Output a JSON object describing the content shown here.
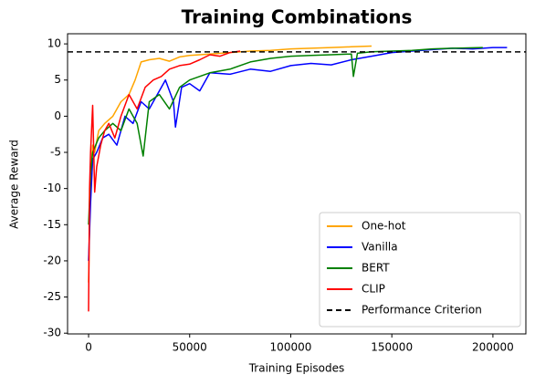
{
  "chart_data": {
    "type": "line",
    "title": "Training Combinations",
    "x_label": "Training Episodes",
    "y_label": "Average Reward",
    "xlim": [
      -10400,
      216300
    ],
    "ylim": [
      -30.1,
      11.4
    ],
    "xticks": [
      0,
      50000,
      100000,
      150000,
      200000
    ],
    "yticks": [
      -30,
      -25,
      -20,
      -15,
      -10,
      -5,
      0,
      5,
      10
    ],
    "legend": "lower right",
    "series": [
      {
        "name": "One-hot",
        "color": "#ffa500",
        "x": [
          0,
          1000,
          2000,
          3000,
          5000,
          8000,
          12000,
          16000,
          20000,
          23000,
          26000,
          30000,
          35000,
          40000,
          45000,
          50000,
          60000,
          70000,
          80000,
          90000,
          100000,
          110000,
          120000,
          130000,
          140000
        ],
        "values": [
          -23,
          -8,
          -4,
          -5,
          -2,
          -1,
          0,
          2,
          3,
          5,
          7.5,
          7.8,
          8,
          7.6,
          8.2,
          8.4,
          8.6,
          8.8,
          9,
          9.1,
          9.3,
          9.4,
          9.5,
          9.6,
          9.7
        ]
      },
      {
        "name": "Vanilla",
        "color": "#0000ff",
        "x": [
          0,
          1000,
          2000,
          4000,
          7000,
          10000,
          14000,
          18000,
          22000,
          26000,
          30000,
          34000,
          38000,
          42000,
          43000,
          46000,
          50000,
          55000,
          60000,
          70000,
          80000,
          90000,
          100000,
          110000,
          120000,
          130000,
          140000,
          150000,
          160000,
          170000,
          180000,
          190000,
          200000,
          207000
        ],
        "values": [
          -20,
          -12,
          -6,
          -5,
          -3,
          -2.5,
          -4,
          0,
          -1,
          2,
          1,
          3,
          5,
          2,
          -1.5,
          4,
          4.5,
          3.5,
          6,
          5.8,
          6.5,
          6.2,
          7,
          7.3,
          7.1,
          7.8,
          8.3,
          8.8,
          9,
          9.2,
          9.4,
          9.3,
          9.5,
          9.5
        ]
      },
      {
        "name": "BERT",
        "color": "#008000",
        "x": [
          0,
          1000,
          2000,
          5000,
          8000,
          12000,
          16000,
          20000,
          24000,
          27000,
          30000,
          35000,
          40000,
          45000,
          50000,
          60000,
          70000,
          80000,
          90000,
          100000,
          110000,
          120000,
          130000,
          131000,
          133000,
          140000,
          150000,
          160000,
          170000,
          180000,
          195000
        ],
        "values": [
          -15,
          -8,
          -5,
          -3,
          -2,
          -1,
          -2,
          1,
          -1,
          -5.5,
          2,
          3,
          1,
          4,
          5,
          6,
          6.5,
          7.5,
          8,
          8.3,
          8.4,
          8.5,
          8.6,
          5.5,
          8.7,
          8.9,
          9,
          9.1,
          9.3,
          9.4,
          9.5
        ]
      },
      {
        "name": "CLIP",
        "color": "#ff0000",
        "x": [
          0,
          500,
          1000,
          2000,
          3000,
          4000,
          6000,
          8000,
          10000,
          13000,
          16000,
          20000,
          24000,
          28000,
          32000,
          36000,
          40000,
          45000,
          50000,
          55000,
          60000,
          65000,
          70000,
          75000
        ],
        "values": [
          -27,
          -10,
          -5,
          1.5,
          -10.5,
          -7,
          -4,
          -2,
          -1,
          -3,
          0,
          3,
          1,
          4,
          5,
          5.5,
          6.5,
          7,
          7.2,
          7.8,
          8.5,
          8.3,
          8.8,
          9
        ]
      }
    ],
    "hline": {
      "name": "Performance Criterion",
      "value": 8.9,
      "color": "#000000"
    }
  }
}
